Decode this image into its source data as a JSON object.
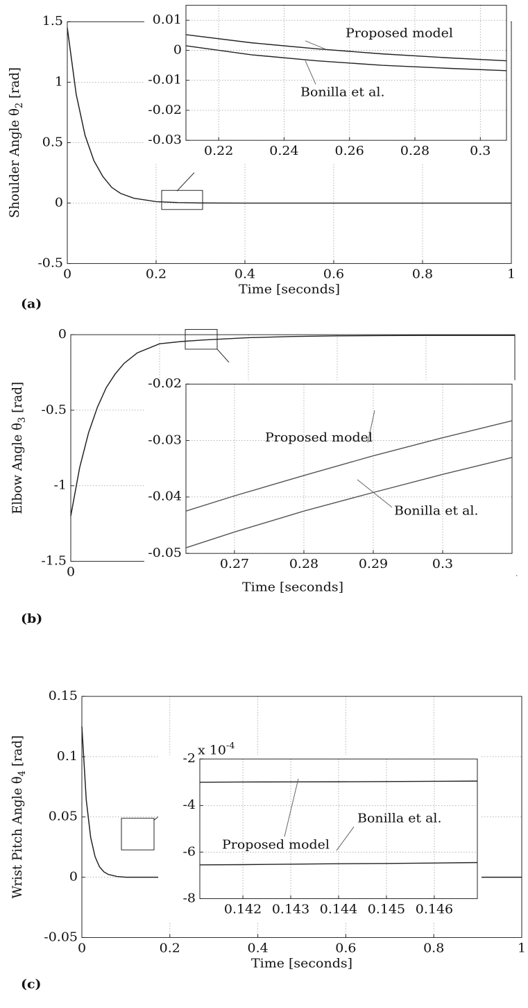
{
  "chart_data": [
    {
      "type": "line",
      "panel_label": "(a)",
      "xlabel": "Time [seconds]",
      "ylabel": [
        "Shoulder Angle θ",
        "2",
        " [rad]"
      ],
      "x": [
        0,
        0.02,
        0.04,
        0.06,
        0.08,
        0.1,
        0.12,
        0.15,
        0.2,
        0.25,
        0.3,
        0.4,
        0.5,
        0.6,
        0.7,
        0.8,
        0.9,
        1
      ],
      "values": [
        1.45,
        0.9,
        0.56,
        0.35,
        0.22,
        0.13,
        0.08,
        0.04,
        0.012,
        0.004,
        0.001,
        0,
        0,
        0,
        0,
        0,
        0,
        0
      ],
      "color": "#222222",
      "xlim": [
        0,
        1
      ],
      "ylim": [
        -0.5,
        1.5
      ],
      "xticks": [
        0,
        0.2,
        0.4,
        0.6,
        0.8,
        1
      ],
      "yticks": [
        -0.5,
        0,
        0.5,
        1,
        1.5
      ],
      "grid": true
    },
    {
      "type": "line",
      "x": [
        0.21,
        0.23,
        0.25,
        0.27,
        0.29,
        0.308
      ],
      "series": [
        {
          "name": "Proposed model",
          "color": "#222222",
          "values": [
            0.0052,
            0.0025,
            0.0005,
            -0.0012,
            -0.0025,
            -0.0035
          ]
        },
        {
          "name": "Bonilla et al.",
          "color": "#222222",
          "values": [
            0.0015,
            -0.0015,
            -0.0035,
            -0.005,
            -0.006,
            -0.0068
          ]
        }
      ],
      "xlim": [
        0.21,
        0.308
      ],
      "ylim": [
        -0.03,
        0.015
      ],
      "xticks": [
        0.22,
        0.24,
        0.26,
        0.28,
        0.3
      ],
      "yticks": [
        -0.03,
        -0.02,
        -0.01,
        0,
        0.01
      ],
      "grid": true
    },
    {
      "type": "line",
      "panel_label": "(b)",
      "xlabel": "Time [seconds]",
      "ylabel": [
        "Elbow Angle θ",
        "3",
        " [rad]"
      ],
      "x": [
        0,
        0.02,
        0.04,
        0.06,
        0.08,
        0.1,
        0.12,
        0.15,
        0.2,
        0.25,
        0.3,
        0.4,
        0.5,
        0.6,
        0.7,
        0.8,
        0.9,
        1
      ],
      "values": [
        -1.2,
        -0.88,
        -0.65,
        -0.48,
        -0.35,
        -0.26,
        -0.19,
        -0.12,
        -0.06,
        -0.045,
        -0.035,
        -0.02,
        -0.012,
        -0.008,
        -0.006,
        -0.005,
        -0.005,
        -0.005
      ],
      "color": "#222222",
      "xlim": [
        0,
        1
      ],
      "ylim": [
        -1.5,
        0
      ],
      "xticks": [
        0,
        0.2,
        0.4,
        0.6,
        0.8,
        1
      ],
      "yticks": [
        -1.5,
        -1,
        -0.5,
        0
      ],
      "grid": true
    },
    {
      "type": "line",
      "x": [
        0.263,
        0.27,
        0.28,
        0.29,
        0.3,
        0.31
      ],
      "series": [
        {
          "name": "Proposed model",
          "color": "#555555",
          "values": [
            -0.0425,
            -0.0398,
            -0.0362,
            -0.0327,
            -0.0295,
            -0.0265
          ]
        },
        {
          "name": "Bonilla et al.",
          "color": "#555555",
          "values": [
            -0.049,
            -0.0462,
            -0.0425,
            -0.0392,
            -0.036,
            -0.033
          ]
        }
      ],
      "xlim": [
        0.263,
        0.31
      ],
      "ylim": [
        -0.05,
        -0.02
      ],
      "xticks": [
        0.27,
        0.28,
        0.29,
        0.3
      ],
      "yticks": [
        -0.05,
        -0.04,
        -0.03,
        -0.02
      ],
      "grid": true
    },
    {
      "type": "line",
      "panel_label": "(c)",
      "xlabel": "Time [seconds]",
      "ylabel": [
        "Wrist Pitch Angle θ",
        "4",
        " [rad]"
      ],
      "x": [
        0,
        0.01,
        0.02,
        0.03,
        0.04,
        0.05,
        0.06,
        0.08,
        0.1,
        0.15,
        0.2,
        0.4,
        0.6,
        0.8,
        1
      ],
      "values": [
        0.125,
        0.064,
        0.033,
        0.017,
        0.0087,
        0.0045,
        0.0023,
        0.0006,
        0,
        0,
        0,
        0,
        0,
        0,
        0
      ],
      "color": "#222222",
      "xlim": [
        0,
        1
      ],
      "ylim": [
        -0.05,
        0.15
      ],
      "xticks": [
        0,
        0.2,
        0.4,
        0.6,
        0.8,
        1
      ],
      "yticks": [
        -0.05,
        0,
        0.05,
        0.1,
        0.15
      ],
      "grid": true
    },
    {
      "type": "line",
      "x": [
        0.1411,
        0.142,
        0.143,
        0.144,
        0.145,
        0.146,
        0.1469
      ],
      "y_multiplier": [
        "x 10",
        "-4"
      ],
      "series": [
        {
          "name": "Proposed model",
          "color": "#222222",
          "values": [
            -3.0,
            -2.99,
            -2.985,
            -2.98,
            -2.97,
            -2.96,
            -2.95
          ]
        },
        {
          "name": "Bonilla et al.",
          "color": "#222222",
          "values": [
            -6.55,
            -6.54,
            -6.52,
            -6.5,
            -6.49,
            -6.47,
            -6.45
          ]
        }
      ],
      "xlim": [
        0.1411,
        0.1469
      ],
      "ylim": [
        -8,
        -2
      ],
      "xticks": [
        0.142,
        0.143,
        0.144,
        0.145,
        0.146
      ],
      "yticks": [
        -2,
        -4,
        -6,
        -8
      ],
      "grid": true
    }
  ]
}
